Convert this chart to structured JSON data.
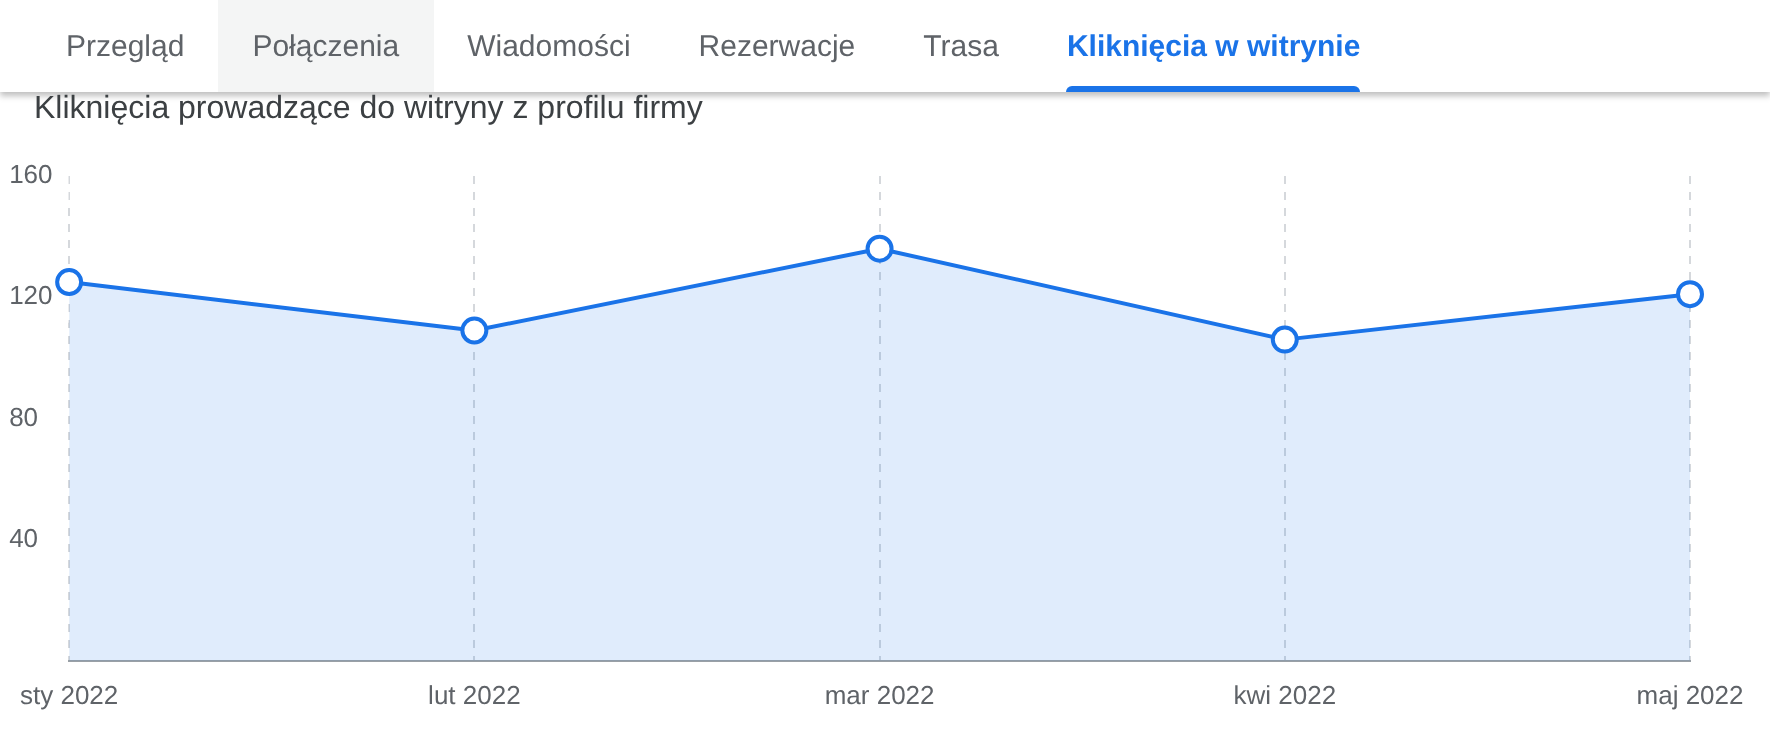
{
  "chart_data": {
    "type": "area",
    "title": "Kliknięcia prowadzące do witryny z profilu firmy",
    "annotations": [
      "Przegląd",
      "Połączenia",
      "Wiadomości",
      "Rezerwacje",
      "Trasa",
      "Kliknięcia w witrynie"
    ],
    "categories": [
      "sty 2022",
      "lut 2022",
      "mar 2022",
      "kwi 2022",
      "maj 2022"
    ],
    "series": [
      {
        "color": "#1a73e8",
        "values": [
          125,
          109,
          136,
          106,
          121
        ]
      }
    ],
    "ylim": [
      0,
      160
    ],
    "yticks": [
      40,
      80,
      120,
      160
    ],
    "grid": "x",
    "marker": "circle",
    "legend": false
  }
}
